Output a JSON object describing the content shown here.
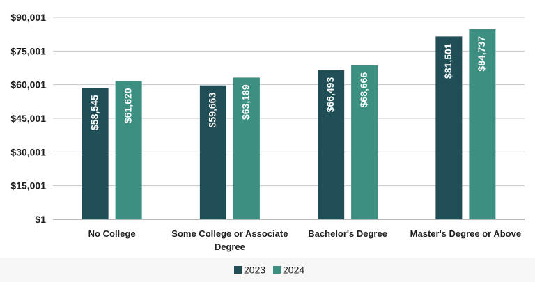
{
  "chart_data": {
    "type": "bar",
    "title": "",
    "xlabel": "",
    "ylabel": "",
    "categories": [
      "No College",
      "Some College or Associate Degree",
      "Bachelor's Degree",
      "Master's Degree or Above"
    ],
    "category_lines": [
      [
        "No College"
      ],
      [
        "Some College or Associate",
        "Degree"
      ],
      [
        "Bachelor's Degree"
      ],
      [
        "Master's Degree or Above"
      ]
    ],
    "series": [
      {
        "name": "2023",
        "values": [
          58545,
          59663,
          66493,
          81501
        ],
        "labels": [
          "$58,545",
          "$59,663",
          "$66,493",
          "$81,501"
        ],
        "color": "#1f4e56"
      },
      {
        "name": "2024",
        "values": [
          61620,
          63189,
          68666,
          84737
        ],
        "labels": [
          "$61,620",
          "$63,189",
          "$68,666",
          "$84,737"
        ],
        "color": "#3d8f82"
      }
    ],
    "yticks": [
      1,
      15001,
      30001,
      45001,
      60001,
      75001,
      90001
    ],
    "ytick_labels": [
      "$1",
      "$15,001",
      "$30,001",
      "$45,001",
      "$60,001",
      "$75,001",
      "$90,001"
    ],
    "ylim": [
      1,
      90001
    ],
    "grid": true,
    "legend_position": "bottom-center"
  }
}
